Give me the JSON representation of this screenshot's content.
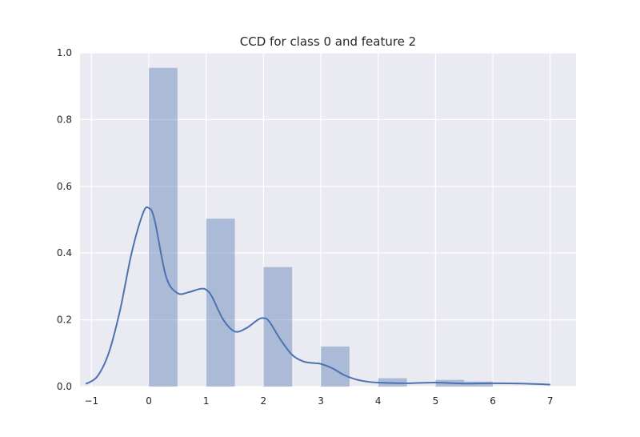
{
  "chart_data": {
    "type": "bar",
    "title": "CCD for class 0 and feature 2",
    "xlabel": "",
    "ylabel": "",
    "xlim": [
      -1.2,
      7.45
    ],
    "ylim": [
      0,
      1.0
    ],
    "xticks": [
      -1,
      0,
      1,
      2,
      3,
      4,
      5,
      6,
      7
    ],
    "xtick_labels": [
      "−1",
      "0",
      "1",
      "2",
      "3",
      "4",
      "5",
      "6",
      "7"
    ],
    "yticks": [
      0.0,
      0.2,
      0.4,
      0.6,
      0.8,
      1.0
    ],
    "ytick_labels": [
      "0.0",
      "0.2",
      "0.4",
      "0.6",
      "0.8",
      "1.0"
    ],
    "grid": true,
    "histogram": {
      "bin_width": 0.5,
      "bars": [
        {
          "x0": 0.0,
          "height": 0.955
        },
        {
          "x0": 0.5,
          "height": 0.0
        },
        {
          "x0": 1.0,
          "height": 0.503
        },
        {
          "x0": 1.5,
          "height": 0.0
        },
        {
          "x0": 2.0,
          "height": 0.358
        },
        {
          "x0": 2.5,
          "height": 0.0
        },
        {
          "x0": 3.0,
          "height": 0.12
        },
        {
          "x0": 3.5,
          "height": 0.0
        },
        {
          "x0": 4.0,
          "height": 0.025
        },
        {
          "x0": 4.5,
          "height": 0.0
        },
        {
          "x0": 5.0,
          "height": 0.02
        },
        {
          "x0": 5.5,
          "height": 0.015
        }
      ]
    },
    "kde": {
      "x": [
        -1.1,
        -0.9,
        -0.7,
        -0.5,
        -0.3,
        -0.1,
        0.0,
        0.1,
        0.3,
        0.5,
        0.7,
        0.9,
        1.0,
        1.1,
        1.3,
        1.5,
        1.7,
        1.9,
        2.0,
        2.1,
        2.3,
        2.5,
        2.7,
        2.9,
        3.0,
        3.2,
        3.4,
        3.6,
        3.8,
        4.0,
        4.5,
        5.0,
        5.5,
        6.0,
        6.5,
        7.0
      ],
      "y": [
        0.008,
        0.03,
        0.1,
        0.23,
        0.4,
        0.52,
        0.535,
        0.5,
        0.33,
        0.28,
        0.283,
        0.293,
        0.29,
        0.27,
        0.2,
        0.165,
        0.175,
        0.2,
        0.205,
        0.195,
        0.14,
        0.095,
        0.075,
        0.07,
        0.068,
        0.055,
        0.035,
        0.022,
        0.015,
        0.012,
        0.01,
        0.012,
        0.009,
        0.01,
        0.009,
        0.006
      ]
    },
    "colors": {
      "background": "#eaeaf2",
      "grid": "#ffffff",
      "bar": "#4c72b0",
      "line": "#4c72b0"
    }
  }
}
